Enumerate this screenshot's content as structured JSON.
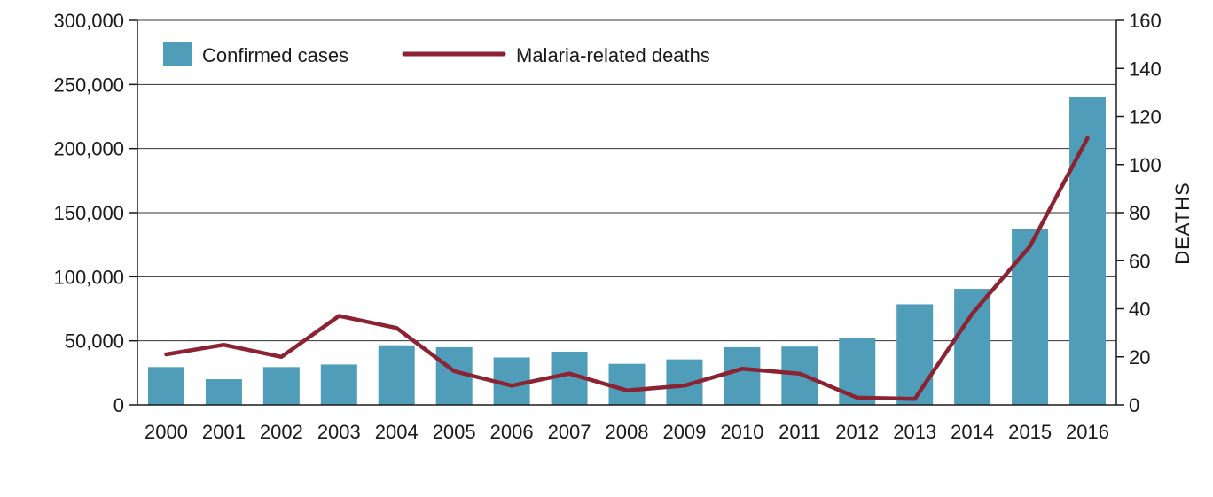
{
  "chart_data": {
    "type": "bar",
    "categories": [
      "2000",
      "2001",
      "2002",
      "2003",
      "2004",
      "2005",
      "2006",
      "2007",
      "2008",
      "2009",
      "2010",
      "2011",
      "2012",
      "2013",
      "2014",
      "2015",
      "2016"
    ],
    "series": [
      {
        "name": "Confirmed cases",
        "type": "bar",
        "axis": "left",
        "values": [
          29500,
          20000,
          29500,
          31500,
          46500,
          45000,
          37000,
          41500,
          32000,
          35500,
          45000,
          45500,
          52500,
          78500,
          90500,
          137000,
          240500
        ]
      },
      {
        "name": "Malaria-related deaths",
        "type": "line",
        "axis": "right",
        "values": [
          21,
          25,
          20,
          37,
          32,
          14,
          8,
          13,
          6,
          8,
          15,
          13,
          3,
          2.5,
          38,
          66,
          111
        ]
      }
    ],
    "y_left": {
      "label": "",
      "ylim": [
        0,
        300000
      ],
      "ticks": [
        0,
        50000,
        100000,
        150000,
        200000,
        250000,
        300000
      ],
      "tick_labels": [
        "0",
        "50,000",
        "100,000",
        "150,000",
        "200,000",
        "250,000",
        "300,000"
      ]
    },
    "y_right": {
      "label": "DEATHS",
      "ylim": [
        0,
        160
      ],
      "ticks": [
        0,
        20,
        40,
        60,
        80,
        100,
        120,
        140,
        160
      ],
      "tick_labels": [
        "0",
        "20",
        "40",
        "60",
        "80",
        "100",
        "120",
        "140",
        "160"
      ]
    },
    "grid": true,
    "legend": "top-left",
    "colors": {
      "bar": "#4f9db8",
      "line": "#8b2332",
      "grid": "#333333"
    }
  }
}
